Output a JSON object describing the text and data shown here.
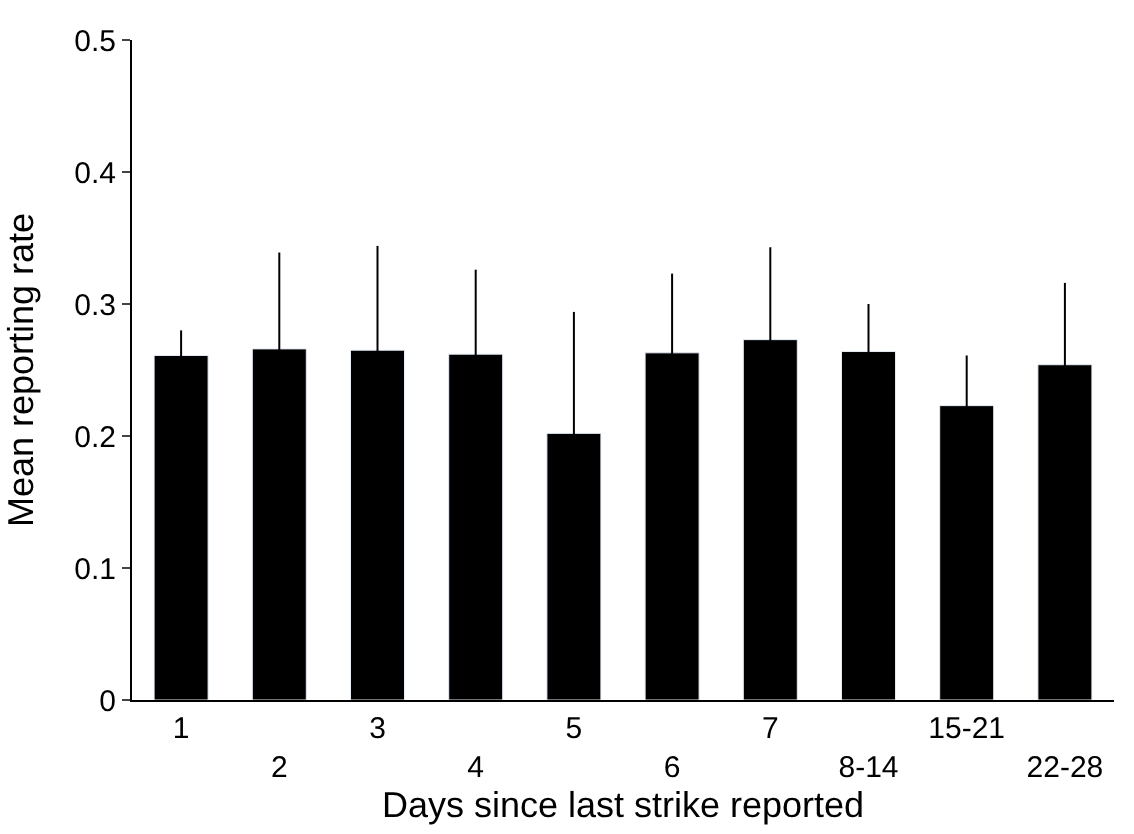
{
  "chart_data": {
    "type": "bar",
    "xlabel": "Days since last strike reported",
    "ylabel": "Mean reporting rate",
    "categories": [
      "1",
      "2",
      "3",
      "4",
      "5",
      "6",
      "7",
      "8-14",
      "15-21",
      "22-28"
    ],
    "values": [
      0.261,
      0.266,
      0.265,
      0.262,
      0.202,
      0.263,
      0.273,
      0.264,
      0.223,
      0.254
    ],
    "errors": [
      0.019,
      0.073,
      0.079,
      0.064,
      0.092,
      0.06,
      0.07,
      0.036,
      0.038,
      0.062
    ],
    "color": "#000000",
    "ylim": [
      0,
      0.5
    ],
    "yticks": [
      0,
      0.1,
      0.2,
      0.3,
      0.4,
      0.5
    ]
  }
}
